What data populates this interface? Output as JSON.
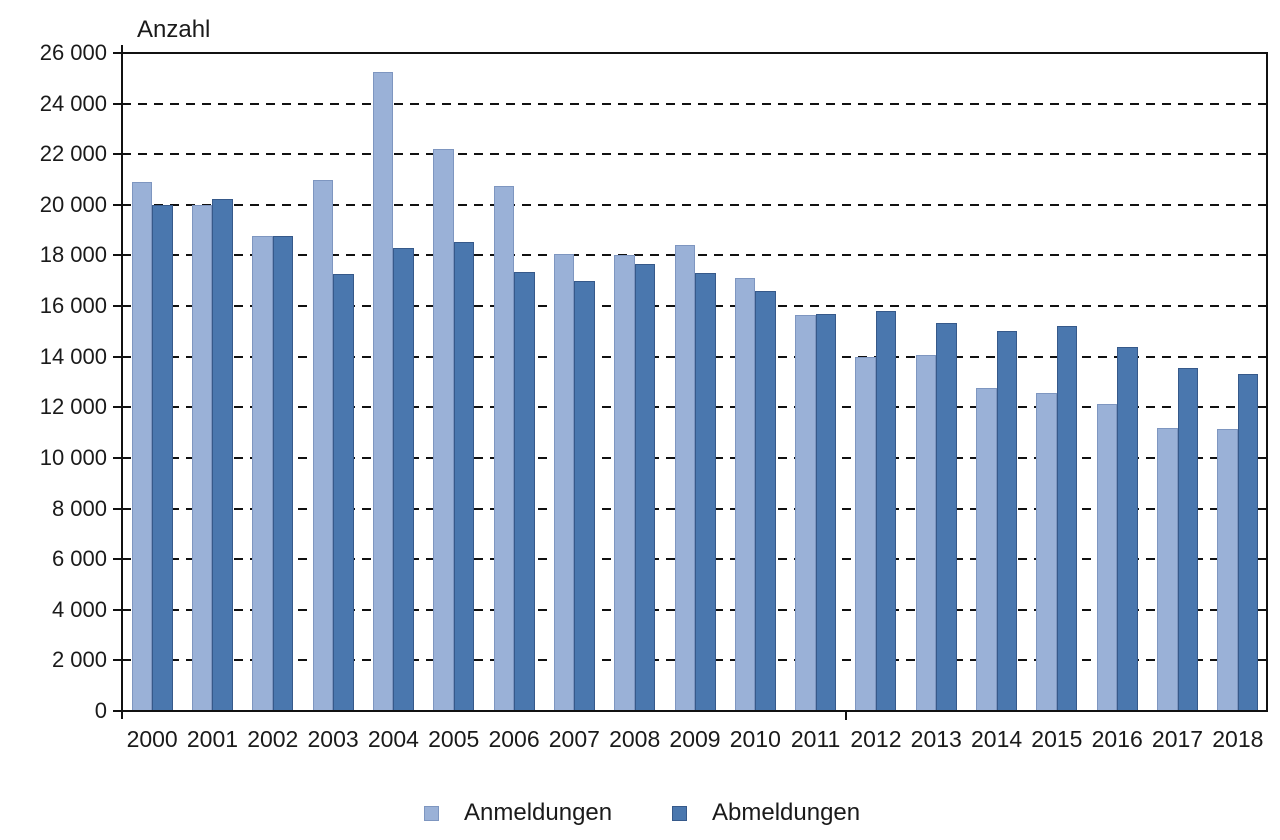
{
  "title": "Anzahl",
  "chart_data": {
    "type": "bar",
    "title": "Anzahl",
    "y_axis_title": "Anzahl",
    "categories": [
      "2000",
      "2001",
      "2002",
      "2003",
      "2004",
      "2005",
      "2006",
      "2007",
      "2008",
      "2009",
      "2010",
      "2011",
      "2012",
      "2013",
      "2014",
      "2015",
      "2016",
      "2017",
      "2018"
    ],
    "series": [
      {
        "name": "Anmeldungen",
        "color": "#9AB1D7",
        "border_color": "#7E96C0",
        "values": [
          20900,
          20000,
          18750,
          21000,
          25250,
          22200,
          20750,
          18050,
          18000,
          18400,
          17100,
          15650,
          14000,
          14050,
          12750,
          12550,
          12150,
          11200,
          11150
        ]
      },
      {
        "name": "Abmeldungen",
        "color": "#4A77AE",
        "border_color": "#36598A",
        "values": [
          20000,
          20250,
          18750,
          17250,
          18300,
          18550,
          17350,
          17000,
          17650,
          17300,
          16600,
          15700,
          15800,
          15350,
          15000,
          15200,
          14400,
          13550,
          13300
        ]
      }
    ],
    "ylim": [
      0,
      26000
    ],
    "ytick_step": 2000,
    "ytick_labels": [
      "26 000",
      "24 000",
      "22 000",
      "20 000",
      "18 000",
      "16 000",
      "14 000",
      "12 000",
      "10 000",
      "8 000",
      "6 000",
      "4 000",
      "2 000",
      "0"
    ],
    "grid": "horizontal-dashed",
    "legend_position": "bottom",
    "axis_color": "#111111",
    "text_color": "#1a1a1a"
  },
  "legend": {
    "items": [
      {
        "label": "Anmeldungen",
        "color": "#9AB1D7",
        "border_color": "#7E96C0"
      },
      {
        "label": "Abmeldungen",
        "color": "#4A77AE",
        "border_color": "#36598A"
      }
    ]
  }
}
